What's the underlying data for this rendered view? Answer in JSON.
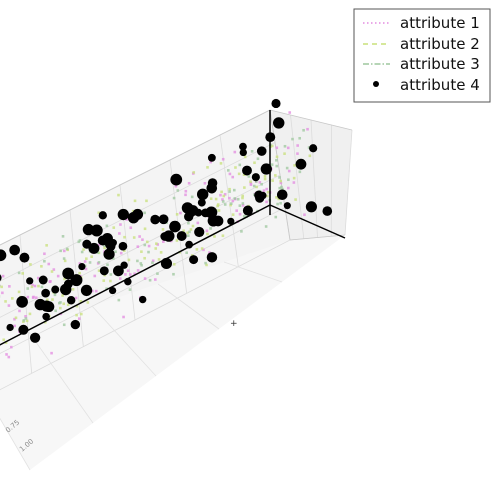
{
  "chart_data": {
    "type": "scatter",
    "projection": "3d",
    "title": "",
    "xlabel": "",
    "ylabel": "",
    "zlabel": "",
    "grid": true,
    "legend_placement": "top-right",
    "visible_tick_labels": [
      "0.75",
      "1.00"
    ],
    "series": [
      {
        "name": "attribute 1",
        "style": "dotted",
        "color": "#e38be0"
      },
      {
        "name": "attribute 2",
        "style": "dashed",
        "color": "#c8e07a"
      },
      {
        "name": "attribute 3",
        "style": "dashdot",
        "color": "#9dc79d"
      },
      {
        "name": "attribute 4",
        "style": "marker",
        "color": "#000000"
      }
    ]
  }
}
